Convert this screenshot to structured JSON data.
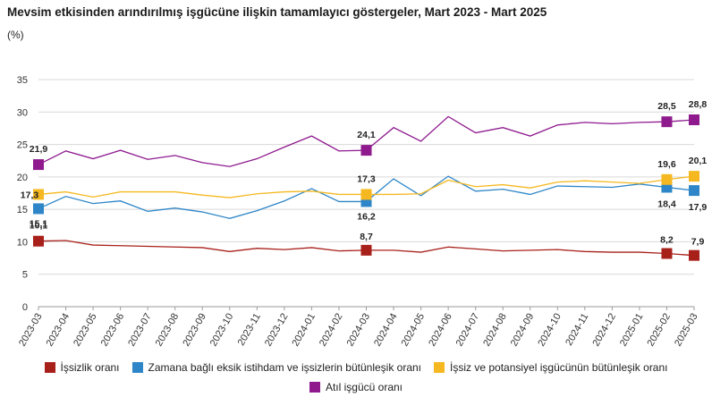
{
  "header": {
    "title": "Mevsim etkisinden arındırılmış işgücüne ilişkin tamamlayıcı göstergeler, Mart 2023 - Mart 2025",
    "unit": "(%)"
  },
  "chart_data": {
    "type": "line",
    "title": "Mevsim etkisinden arındırılmış işgücüne ilişkin tamamlayıcı göstergeler, Mart 2023 - Mart 2025",
    "ylabel": "(%)",
    "ylim": [
      0,
      35
    ],
    "yticks": [
      0,
      5,
      10,
      15,
      20,
      25,
      30,
      35
    ],
    "grid": true,
    "legend_position": "bottom",
    "x": [
      "2023-03",
      "2023-04",
      "2023-05",
      "2023-06",
      "2023-07",
      "2023-08",
      "2023-09",
      "2023-10",
      "2023-11",
      "2023-12",
      "2024-01",
      "2024-02",
      "2024-03",
      "2024-04",
      "2024-05",
      "2024-06",
      "2024-07",
      "2024-08",
      "2024-09",
      "2024-10",
      "2024-11",
      "2024-12",
      "2025-01",
      "2025-02",
      "2025-03"
    ],
    "series": [
      {
        "name": "İşsizlik oranı",
        "color": "#a8201a",
        "values": [
          10.1,
          10.2,
          9.5,
          9.4,
          9.3,
          9.2,
          9.1,
          8.5,
          9.0,
          8.8,
          9.1,
          8.6,
          8.7,
          8.7,
          8.4,
          9.2,
          8.9,
          8.6,
          8.7,
          8.8,
          8.5,
          8.4,
          8.4,
          8.2,
          7.9
        ],
        "labels": [
          {
            "i": 0,
            "text": "10,1"
          },
          {
            "i": 12,
            "text": "8,7"
          },
          {
            "i": 23,
            "text": "8,2"
          },
          {
            "i": 24,
            "text": "7,9"
          }
        ]
      },
      {
        "name": "Zamana bağlı eksik istihdam ve işsizlerin bütünleşik oranı",
        "color": "#2e86c8",
        "values": [
          15.1,
          17.0,
          15.9,
          16.3,
          14.7,
          15.2,
          14.6,
          13.6,
          14.8,
          16.3,
          18.2,
          16.2,
          16.2,
          19.7,
          17.1,
          20.1,
          17.8,
          18.1,
          17.3,
          18.6,
          18.5,
          18.4,
          18.9,
          18.4,
          17.9
        ],
        "labels": [
          {
            "i": 0,
            "text": "15,1"
          },
          {
            "i": 12,
            "text": "16,2"
          },
          {
            "i": 23,
            "text": "18,4"
          },
          {
            "i": 24,
            "text": "17,9"
          }
        ]
      },
      {
        "name": "İşsiz ve potansiyel işgücünün bütünleşik oranı",
        "color": "#f5b820",
        "values": [
          17.3,
          17.7,
          16.9,
          17.7,
          17.7,
          17.7,
          17.2,
          16.8,
          17.4,
          17.7,
          17.8,
          17.3,
          17.3,
          17.3,
          17.4,
          19.5,
          18.5,
          18.8,
          18.3,
          19.2,
          19.4,
          19.2,
          19.0,
          19.6,
          20.1
        ],
        "labels": [
          {
            "i": 0,
            "text": "17,3"
          },
          {
            "i": 12,
            "text": "17,3"
          },
          {
            "i": 23,
            "text": "19,6"
          },
          {
            "i": 24,
            "text": "20,1"
          }
        ]
      },
      {
        "name": "Atıl işgücü oranı",
        "color": "#8e1a8e",
        "values": [
          21.9,
          24.0,
          22.8,
          24.1,
          22.7,
          23.3,
          22.2,
          21.6,
          22.8,
          24.6,
          26.3,
          24.0,
          24.1,
          27.6,
          25.5,
          29.3,
          26.8,
          27.6,
          26.3,
          28.0,
          28.4,
          28.2,
          28.4,
          28.5,
          28.8
        ],
        "labels": [
          {
            "i": 0,
            "text": "21,9"
          },
          {
            "i": 12,
            "text": "24,1"
          },
          {
            "i": 23,
            "text": "28,5"
          },
          {
            "i": 24,
            "text": "28,8"
          }
        ]
      }
    ]
  }
}
